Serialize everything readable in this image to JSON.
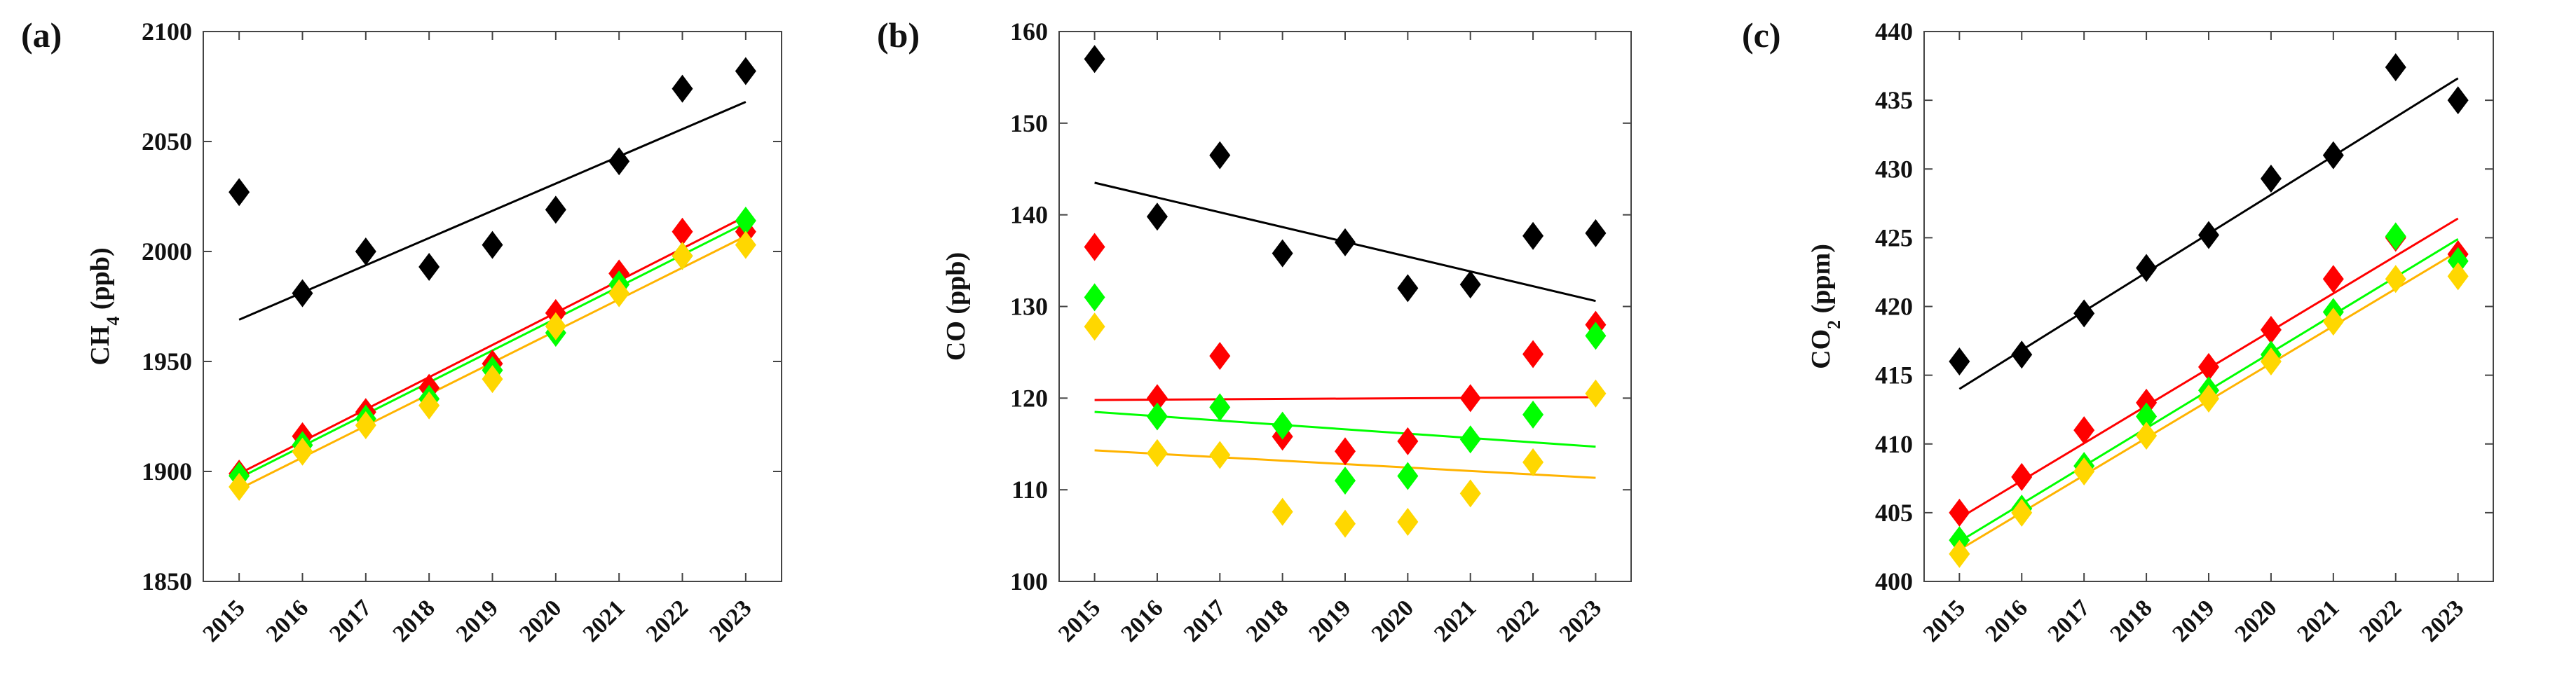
{
  "chart_data": [
    {
      "type": "scatter",
      "panel_label": "(a)",
      "ylabel": "CH",
      "ylabel_sub": "4",
      "ylabel_unit": " (ppb)",
      "categories": [
        "2015",
        "2016",
        "2017",
        "2018",
        "2019",
        "2020",
        "2021",
        "2022",
        "2023"
      ],
      "ylim": [
        1850,
        2100
      ],
      "yticks": [
        1850,
        1900,
        1950,
        2000,
        2050,
        2100
      ],
      "series": [
        {
          "color": "#000000",
          "values": [
            2027,
            1981,
            2000,
            1993,
            2003,
            2019,
            2041,
            2074,
            2082
          ],
          "trend": [
            1969,
            2068
          ]
        },
        {
          "color": "#ff0000",
          "values": [
            1899,
            1916,
            1927,
            1938,
            1949,
            1972,
            1990,
            2009,
            2009
          ],
          "trend": [
            1899,
            2016
          ]
        },
        {
          "color": "#00ff00",
          "values": [
            1898,
            1912,
            1924,
            1933,
            1946,
            1963,
            1985,
            1998,
            2014
          ],
          "trend": [
            1897,
            2013
          ]
        },
        {
          "color": "#ffd700",
          "values": [
            1893,
            1909,
            1921,
            1930,
            1942,
            1966,
            1981,
            1998,
            2003
          ],
          "trend": [
            1892,
            2007
          ]
        }
      ]
    },
    {
      "type": "scatter",
      "panel_label": "(b)",
      "ylabel": "CO (ppb)",
      "categories": [
        "2015",
        "2016",
        "2017",
        "2018",
        "2019",
        "2020",
        "2021",
        "2022",
        "2023"
      ],
      "ylim": [
        100,
        160
      ],
      "yticks": [
        100,
        110,
        120,
        130,
        140,
        150,
        160
      ],
      "series": [
        {
          "color": "#000000",
          "values": [
            157.0,
            139.8,
            146.5,
            135.8,
            137.0,
            132.0,
            132.4,
            137.7,
            138.0
          ],
          "trend": [
            143.5,
            130.6
          ]
        },
        {
          "color": "#ff0000",
          "values": [
            136.5,
            120.0,
            124.6,
            115.8,
            114.2,
            115.3,
            120.0,
            124.8,
            128.0
          ],
          "trend": [
            119.8,
            120.1
          ]
        },
        {
          "color": "#00ff00",
          "values": [
            131.0,
            118.0,
            119.0,
            117.0,
            111.0,
            111.5,
            115.5,
            118.2,
            126.8
          ],
          "trend": [
            118.5,
            114.7
          ]
        },
        {
          "color": "#ffd700",
          "values": [
            127.8,
            114.0,
            113.8,
            107.6,
            106.3,
            106.5,
            109.6,
            113.0,
            120.5
          ],
          "trend": [
            114.3,
            111.3
          ]
        }
      ]
    },
    {
      "type": "scatter",
      "panel_label": "(c)",
      "ylabel": "CO",
      "ylabel_sub": "2",
      "ylabel_unit": " (ppm)",
      "categories": [
        "2015",
        "2016",
        "2017",
        "2018",
        "2019",
        "2020",
        "2021",
        "2022",
        "2023"
      ],
      "ylim": [
        400,
        440
      ],
      "yticks": [
        400,
        405,
        410,
        415,
        420,
        425,
        430,
        435,
        440
      ],
      "series": [
        {
          "color": "#000000",
          "values": [
            416.0,
            416.5,
            419.5,
            422.8,
            425.2,
            429.3,
            431.0,
            437.4,
            435.0
          ],
          "trend": [
            414.0,
            436.6
          ]
        },
        {
          "color": "#ff0000",
          "values": [
            405.0,
            407.6,
            411.0,
            413.0,
            415.6,
            418.3,
            422.0,
            425.0,
            423.8
          ],
          "trend": [
            404.6,
            426.4
          ]
        },
        {
          "color": "#00ff00",
          "values": [
            403.0,
            405.3,
            408.4,
            412.0,
            413.9,
            416.5,
            419.6,
            425.1,
            423.3
          ],
          "trend": [
            402.9,
            424.9
          ]
        },
        {
          "color": "#ffd700",
          "values": [
            402.0,
            405.0,
            408.0,
            410.6,
            413.3,
            416.0,
            418.9,
            422.0,
            422.2
          ],
          "trend": [
            402.3,
            424.0
          ]
        }
      ]
    }
  ]
}
